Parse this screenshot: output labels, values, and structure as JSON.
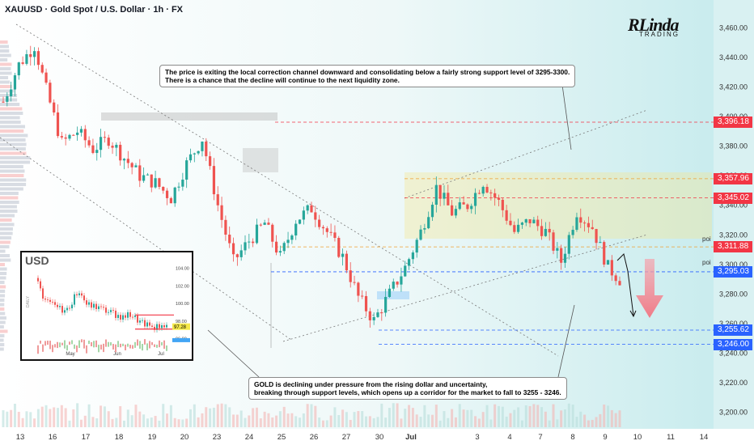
{
  "header": {
    "symbol_line": "XAUUSD · Gold Spot / U.S. Dollar · 1h · FX"
  },
  "logo": {
    "main": "RLinda",
    "sub": "TRADING"
  },
  "annotations": {
    "top_note": "The price is exiting the local correction channel downward and consolidating below a fairly strong support level of 3295-3300.\nThere is a chance that the decline will continue to the next liquidity zone.",
    "bottom_note": "GOLD is declining under pressure from the rising dollar and uncertainty,\nbreaking through support levels, which opens up a corridor for the market to fall to 3255 - 3246."
  },
  "poi_labels": [
    "poi",
    "poi"
  ],
  "colors": {
    "up": "#26a69a",
    "down": "#ef5350",
    "level_red": "#f23645",
    "level_blue": "#2962ff",
    "zone": "#f6e58d",
    "arrow": "#f07b87"
  },
  "chart_data": {
    "type": "candlestick",
    "x_ticks": [
      "13",
      "16",
      "17",
      "18",
      "19",
      "20",
      "23",
      "24",
      "25",
      "26",
      "27",
      "30",
      "Jul",
      "3",
      "4",
      "7",
      "8",
      "9",
      "10",
      "11",
      "14"
    ],
    "y_ticks": [
      "3,460.00",
      "3,440.00",
      "3,420.00",
      "3,400.00",
      "3,380.00",
      "3,360.00",
      "3,340.00",
      "3,320.00",
      "3,300.00",
      "3,280.00",
      "3,260.00",
      "3,240.00",
      "3,220.00",
      "3,200.00"
    ],
    "ylim": [
      3190,
      3470
    ],
    "price_levels": [
      {
        "value": 3396.18,
        "label": "3,396.18",
        "color": "red"
      },
      {
        "value": 3357.96,
        "label": "3,357.96",
        "color": "red"
      },
      {
        "value": 3345.02,
        "label": "3,345.02",
        "color": "red"
      },
      {
        "value": 3311.88,
        "label": "3,311.88",
        "color": "red"
      },
      {
        "value": 3295.03,
        "label": "3,295.03",
        "color": "blue"
      },
      {
        "value": 3255.62,
        "label": "3,255.62",
        "color": "blue"
      },
      {
        "value": 3246.0,
        "label": "3,246.00",
        "color": "blue"
      }
    ],
    "close_path": [
      {
        "i": 0,
        "v": 3410
      },
      {
        "i": 4,
        "v": 3435
      },
      {
        "i": 8,
        "v": 3448
      },
      {
        "i": 11,
        "v": 3418
      },
      {
        "i": 15,
        "v": 3382
      },
      {
        "i": 19,
        "v": 3390
      },
      {
        "i": 23,
        "v": 3378
      },
      {
        "i": 27,
        "v": 3385
      },
      {
        "i": 31,
        "v": 3372
      },
      {
        "i": 35,
        "v": 3360
      },
      {
        "i": 39,
        "v": 3355
      },
      {
        "i": 43,
        "v": 3345
      },
      {
        "i": 47,
        "v": 3368
      },
      {
        "i": 51,
        "v": 3385
      },
      {
        "i": 55,
        "v": 3340
      },
      {
        "i": 59,
        "v": 3302
      },
      {
        "i": 63,
        "v": 3316
      },
      {
        "i": 67,
        "v": 3328
      },
      {
        "i": 71,
        "v": 3305
      },
      {
        "i": 75,
        "v": 3330
      },
      {
        "i": 79,
        "v": 3338
      },
      {
        "i": 83,
        "v": 3322
      },
      {
        "i": 87,
        "v": 3305
      },
      {
        "i": 91,
        "v": 3278
      },
      {
        "i": 95,
        "v": 3262
      },
      {
        "i": 99,
        "v": 3280
      },
      {
        "i": 103,
        "v": 3298
      },
      {
        "i": 107,
        "v": 3322
      },
      {
        "i": 111,
        "v": 3352
      },
      {
        "i": 115,
        "v": 3335
      },
      {
        "i": 119,
        "v": 3340
      },
      {
        "i": 123,
        "v": 3356
      },
      {
        "i": 127,
        "v": 3342
      },
      {
        "i": 131,
        "v": 3322
      },
      {
        "i": 135,
        "v": 3330
      },
      {
        "i": 139,
        "v": 3322
      },
      {
        "i": 143,
        "v": 3302
      },
      {
        "i": 147,
        "v": 3336
      },
      {
        "i": 151,
        "v": 3325
      },
      {
        "i": 155,
        "v": 3298
      },
      {
        "i": 158,
        "v": 3290
      }
    ],
    "inset": {
      "title": "USD",
      "y_ticks": [
        "104.00",
        "102.00",
        "100.00",
        "98.00",
        "96.00"
      ],
      "x_ticks": [
        "May",
        "Jun",
        "Jul"
      ],
      "last_value": "97.28",
      "side_label": "DAILY"
    }
  }
}
